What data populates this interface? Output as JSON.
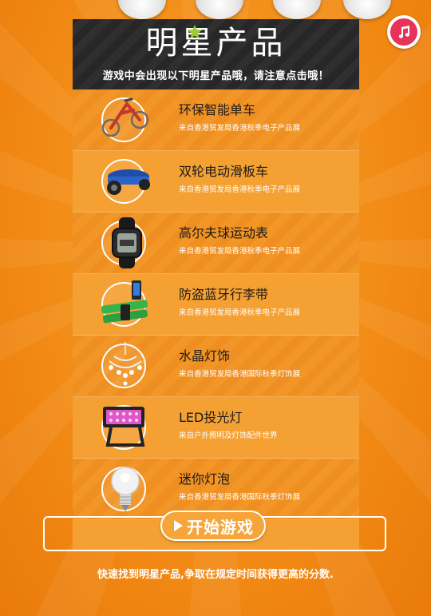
{
  "header": {
    "title": "明星产品",
    "subtitle": "游戏中会出现以下明星产品哦，请注意点击哦！"
  },
  "products": [
    {
      "name": "环保智能单车",
      "source": "来自香港贸发局香港秋季电子产品展",
      "icon": "bicycle-icon"
    },
    {
      "name": "双轮电动滑板车",
      "source": "来自香港贸发局香港秋季电子产品展",
      "icon": "hoverboard-icon"
    },
    {
      "name": "高尔夫球运动表",
      "source": "来自香港贸发局香港秋季电子产品展",
      "icon": "watch-icon"
    },
    {
      "name": "防盗蓝牙行李带",
      "source": "来自香港贸发局香港秋季电子产品展",
      "icon": "luggage-strap-icon"
    },
    {
      "name": "水晶灯饰",
      "source": "来自香港贸发局香港国际秋季灯饰展",
      "icon": "chandelier-icon"
    },
    {
      "name": "LED投光灯",
      "source": "来自户外照明及灯饰配件世界",
      "icon": "floodlight-icon"
    },
    {
      "name": "迷你灯泡",
      "source": "来自香港贸发局香港国际秋季灯饰展",
      "icon": "bulb-icon"
    }
  ],
  "start_button": {
    "label": "开始游戏"
  },
  "footer": {
    "text": "快速找到明星产品,争取在规定时间获得更高的分数."
  },
  "colors": {
    "background": "#f39019",
    "panel": "#f4a032",
    "header": "#2f2f2f",
    "music": "#e8325a",
    "accent_star": "#9acd32"
  }
}
